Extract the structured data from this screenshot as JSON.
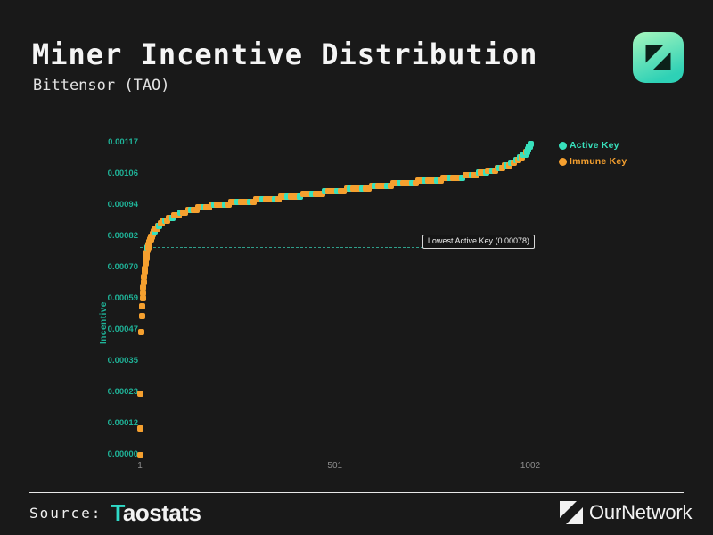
{
  "header": {
    "title": "Miner Incentive Distribution",
    "subtitle": "Bittensor (TAO)"
  },
  "footer": {
    "source_label": "Source:",
    "source_name": "Taostats",
    "brand": "OurNetwork"
  },
  "colors": {
    "background": "#191919",
    "active_teal": "#38e1bd",
    "immune_orange": "#f5a02f",
    "axis_teal": "#1fb398",
    "axis_gray": "#8f8f8f",
    "annotation_border": "#d8d8d8",
    "logo_gradient_top": "#a6f6bd",
    "logo_gradient_bottom": "#2ed1b6"
  },
  "chart_data": {
    "type": "scatter",
    "title": "Miner Incentive Distribution",
    "xlabel": "",
    "ylabel": "Incentive",
    "grid": false,
    "legend_position": "top-right",
    "xlim": [
      1,
      1002
    ],
    "ylim": [
      0,
      0.001174
    ],
    "x_ticks": [
      1,
      501,
      1002
    ],
    "y_tick_labels": [
      "0.00117",
      "0.00106",
      "0.00094",
      "0.00082",
      "0.00070",
      "0.00059",
      "0.00047",
      "0.00035",
      "0.00023",
      "0.00012",
      "0.00000"
    ],
    "legend": [
      {
        "label": "Active Key",
        "color": "#38e1bd"
      },
      {
        "label": "Immune Key",
        "color": "#f5a02f"
      }
    ],
    "annotation": {
      "text": "Lowest Active Key (0.00078)",
      "value": 0.00078
    },
    "points": [
      [
        1,
        0.0,
        "i"
      ],
      [
        2,
        0.0001,
        "i"
      ],
      [
        3,
        0.00023,
        "i"
      ],
      [
        5,
        0.00046,
        "i"
      ],
      [
        6,
        0.00052,
        "i"
      ],
      [
        7,
        0.00056,
        "i"
      ],
      [
        8,
        0.00059,
        "i"
      ],
      [
        9,
        0.00061,
        "i"
      ],
      [
        10,
        0.00063,
        "i"
      ],
      [
        11,
        0.00065,
        "i"
      ],
      [
        12,
        0.00067,
        "i"
      ],
      [
        13,
        0.00069,
        "i"
      ],
      [
        14,
        0.0007,
        "i"
      ],
      [
        15,
        0.00072,
        "i"
      ],
      [
        16,
        0.00073,
        "i"
      ],
      [
        17,
        0.00074,
        "i"
      ],
      [
        18,
        0.00075,
        "i"
      ],
      [
        19,
        0.00076,
        "i"
      ],
      [
        20,
        0.00077,
        "i"
      ],
      [
        21,
        0.00078,
        "a"
      ],
      [
        22,
        0.00078,
        "i"
      ],
      [
        23,
        0.00079,
        "i"
      ],
      [
        24,
        0.00079,
        "i"
      ],
      [
        25,
        0.0008,
        "i"
      ],
      [
        26,
        0.0008,
        "i"
      ],
      [
        27,
        0.00081,
        "i"
      ],
      [
        29,
        0.00081,
        "i"
      ],
      [
        30,
        0.00082,
        "i"
      ],
      [
        32,
        0.00082,
        "i"
      ],
      [
        33,
        0.00083,
        "i"
      ],
      [
        35,
        0.00083,
        "i"
      ],
      [
        37,
        0.00084,
        "i"
      ],
      [
        39,
        0.00084,
        "a"
      ],
      [
        42,
        0.00085,
        "i"
      ],
      [
        45,
        0.00085,
        "i"
      ],
      [
        48,
        0.00086,
        "i"
      ],
      [
        51,
        0.00086,
        "a"
      ],
      [
        54,
        0.00087,
        "i"
      ],
      [
        58,
        0.00087,
        "i"
      ],
      [
        62,
        0.00088,
        "i"
      ],
      [
        66,
        0.00088,
        "a"
      ],
      [
        70,
        0.00088,
        "i"
      ],
      [
        75,
        0.00089,
        "i"
      ],
      [
        80,
        0.00089,
        "i"
      ],
      [
        85,
        0.00089,
        "a"
      ],
      [
        90,
        0.0009,
        "i"
      ],
      [
        95,
        0.0009,
        "i"
      ],
      [
        100,
        0.0009,
        "i"
      ],
      [
        105,
        0.00091,
        "a"
      ],
      [
        111,
        0.00091,
        "i"
      ],
      [
        117,
        0.00091,
        "i"
      ],
      [
        125,
        0.00092,
        "i"
      ],
      [
        132,
        0.00092,
        "a"
      ],
      [
        139,
        0.00092,
        "i"
      ],
      [
        146,
        0.00092,
        "i"
      ],
      [
        150,
        0.00093,
        "i"
      ],
      [
        157,
        0.00093,
        "i"
      ],
      [
        164,
        0.00093,
        "a"
      ],
      [
        171,
        0.00093,
        "i"
      ],
      [
        178,
        0.00093,
        "i"
      ],
      [
        185,
        0.00094,
        "i"
      ],
      [
        192,
        0.00094,
        "a"
      ],
      [
        199,
        0.00094,
        "i"
      ],
      [
        206,
        0.00094,
        "i"
      ],
      [
        213,
        0.00094,
        "i"
      ],
      [
        220,
        0.00094,
        "a"
      ],
      [
        228,
        0.00094,
        "i"
      ],
      [
        236,
        0.00095,
        "i"
      ],
      [
        244,
        0.00095,
        "i"
      ],
      [
        252,
        0.00095,
        "a"
      ],
      [
        260,
        0.00095,
        "i"
      ],
      [
        268,
        0.00095,
        "i"
      ],
      [
        276,
        0.00095,
        "i"
      ],
      [
        284,
        0.00095,
        "a"
      ],
      [
        292,
        0.00095,
        "i"
      ],
      [
        300,
        0.00096,
        "i"
      ],
      [
        308,
        0.00096,
        "i"
      ],
      [
        316,
        0.00096,
        "a"
      ],
      [
        324,
        0.00096,
        "i"
      ],
      [
        332,
        0.00096,
        "i"
      ],
      [
        340,
        0.00096,
        "i"
      ],
      [
        348,
        0.00096,
        "a"
      ],
      [
        356,
        0.00096,
        "i"
      ],
      [
        364,
        0.00097,
        "i"
      ],
      [
        372,
        0.00097,
        "i"
      ],
      [
        380,
        0.00097,
        "a"
      ],
      [
        388,
        0.00097,
        "i"
      ],
      [
        396,
        0.00097,
        "i"
      ],
      [
        404,
        0.00097,
        "i"
      ],
      [
        412,
        0.00097,
        "a"
      ],
      [
        420,
        0.00098,
        "i"
      ],
      [
        428,
        0.00098,
        "i"
      ],
      [
        436,
        0.00098,
        "i"
      ],
      [
        444,
        0.00098,
        "a"
      ],
      [
        452,
        0.00098,
        "i"
      ],
      [
        460,
        0.00098,
        "i"
      ],
      [
        468,
        0.00098,
        "i"
      ],
      [
        476,
        0.00099,
        "a"
      ],
      [
        484,
        0.00099,
        "i"
      ],
      [
        492,
        0.00099,
        "i"
      ],
      [
        500,
        0.00099,
        "i"
      ],
      [
        508,
        0.00099,
        "a"
      ],
      [
        516,
        0.00099,
        "i"
      ],
      [
        524,
        0.00099,
        "i"
      ],
      [
        532,
        0.001,
        "i"
      ],
      [
        540,
        0.001,
        "a"
      ],
      [
        548,
        0.001,
        "i"
      ],
      [
        556,
        0.001,
        "i"
      ],
      [
        564,
        0.001,
        "i"
      ],
      [
        572,
        0.001,
        "a"
      ],
      [
        580,
        0.001,
        "i"
      ],
      [
        588,
        0.001,
        "i"
      ],
      [
        596,
        0.00101,
        "i"
      ],
      [
        604,
        0.00101,
        "a"
      ],
      [
        612,
        0.00101,
        "i"
      ],
      [
        620,
        0.00101,
        "i"
      ],
      [
        628,
        0.00101,
        "i"
      ],
      [
        636,
        0.00101,
        "a"
      ],
      [
        644,
        0.00101,
        "i"
      ],
      [
        652,
        0.00102,
        "i"
      ],
      [
        660,
        0.00102,
        "i"
      ],
      [
        668,
        0.00102,
        "a"
      ],
      [
        676,
        0.00102,
        "i"
      ],
      [
        684,
        0.00102,
        "i"
      ],
      [
        692,
        0.00102,
        "i"
      ],
      [
        700,
        0.00102,
        "a"
      ],
      [
        708,
        0.00102,
        "i"
      ],
      [
        716,
        0.00103,
        "i"
      ],
      [
        724,
        0.00103,
        "i"
      ],
      [
        732,
        0.00103,
        "a"
      ],
      [
        740,
        0.00103,
        "i"
      ],
      [
        748,
        0.00103,
        "i"
      ],
      [
        756,
        0.00103,
        "i"
      ],
      [
        764,
        0.00103,
        "a"
      ],
      [
        772,
        0.00103,
        "i"
      ],
      [
        780,
        0.00104,
        "i"
      ],
      [
        788,
        0.00104,
        "i"
      ],
      [
        796,
        0.00104,
        "a"
      ],
      [
        804,
        0.00104,
        "i"
      ],
      [
        812,
        0.00104,
        "i"
      ],
      [
        820,
        0.00104,
        "i"
      ],
      [
        828,
        0.00104,
        "a"
      ],
      [
        836,
        0.00105,
        "i"
      ],
      [
        844,
        0.00105,
        "i"
      ],
      [
        852,
        0.00105,
        "a"
      ],
      [
        858,
        0.00105,
        "i"
      ],
      [
        864,
        0.00105,
        "i"
      ],
      [
        870,
        0.00106,
        "a"
      ],
      [
        876,
        0.00106,
        "i"
      ],
      [
        882,
        0.00106,
        "i"
      ],
      [
        888,
        0.00106,
        "a"
      ],
      [
        894,
        0.00107,
        "i"
      ],
      [
        900,
        0.00107,
        "i"
      ],
      [
        906,
        0.00107,
        "a"
      ],
      [
        912,
        0.00107,
        "i"
      ],
      [
        918,
        0.00108,
        "i"
      ],
      [
        924,
        0.00108,
        "a"
      ],
      [
        930,
        0.00108,
        "i"
      ],
      [
        936,
        0.00109,
        "i"
      ],
      [
        942,
        0.00109,
        "a"
      ],
      [
        948,
        0.00109,
        "i"
      ],
      [
        954,
        0.0011,
        "a"
      ],
      [
        960,
        0.0011,
        "i"
      ],
      [
        966,
        0.00111,
        "a"
      ],
      [
        971,
        0.00111,
        "i"
      ],
      [
        976,
        0.00112,
        "a"
      ],
      [
        981,
        0.00112,
        "i"
      ],
      [
        985,
        0.00113,
        "a"
      ],
      [
        989,
        0.00113,
        "a"
      ],
      [
        992,
        0.00114,
        "i"
      ],
      [
        995,
        0.00114,
        "a"
      ],
      [
        997,
        0.00115,
        "a"
      ],
      [
        999,
        0.00116,
        "a"
      ],
      [
        1001,
        0.00116,
        "a"
      ],
      [
        1002,
        0.00117,
        "a"
      ]
    ]
  }
}
